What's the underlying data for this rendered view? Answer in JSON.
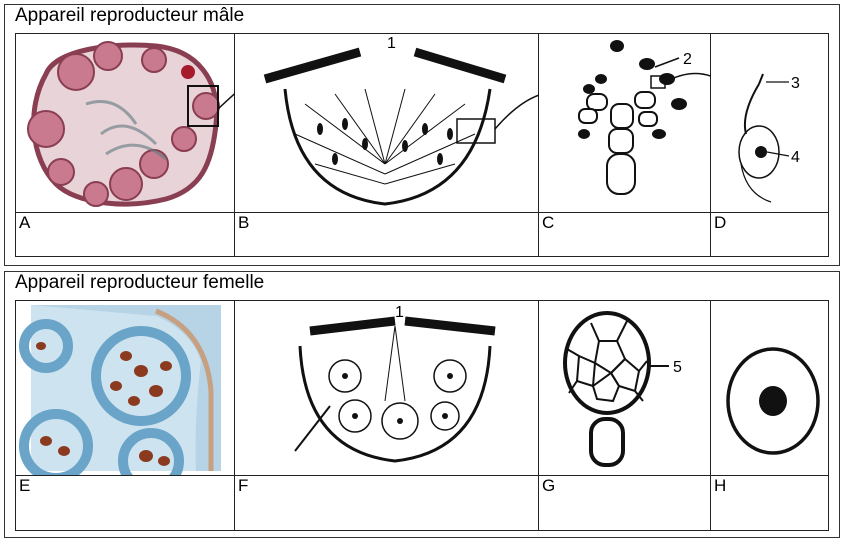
{
  "sections": {
    "male": {
      "title": "Appareil reproducteur mâle",
      "panels": [
        "A",
        "B",
        "C",
        "D"
      ],
      "labels": [
        "1",
        "2",
        "3",
        "4"
      ]
    },
    "female": {
      "title": "Appareil reproducteur femelle",
      "panels": [
        "E",
        "F",
        "G",
        "H"
      ],
      "labels": [
        "1",
        "5"
      ]
    }
  },
  "colors": {
    "thallus_outline": "#8a3e52",
    "conceptacle_pink": "#c97a8e",
    "female_blue": "#6aa4c8",
    "oogonium_brown": "#8b3a1f"
  }
}
